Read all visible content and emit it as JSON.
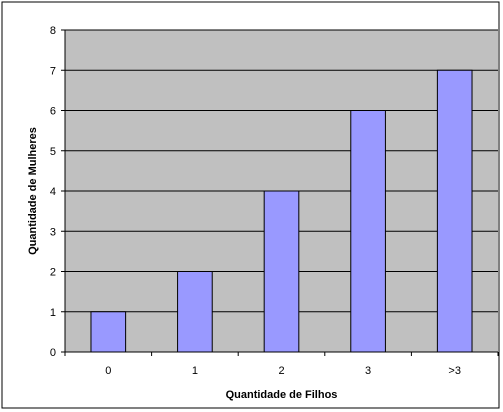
{
  "chart_data": {
    "type": "bar",
    "categories": [
      "0",
      "1",
      "2",
      "3",
      ">3"
    ],
    "values": [
      1,
      2,
      4,
      6,
      7
    ],
    "title": "",
    "xlabel": "Quantidade de Filhos",
    "ylabel": "Quantidade de Mulheres",
    "ylim": [
      0,
      8
    ],
    "yticks": [
      "0",
      "1",
      "2",
      "3",
      "4",
      "5",
      "6",
      "7",
      "8"
    ],
    "grid": true,
    "legend": "none",
    "colors": {
      "bar": "#9999ff",
      "bar_border": "#000000",
      "plot_background": "#c0c0c0",
      "gridline": "#000000"
    }
  }
}
